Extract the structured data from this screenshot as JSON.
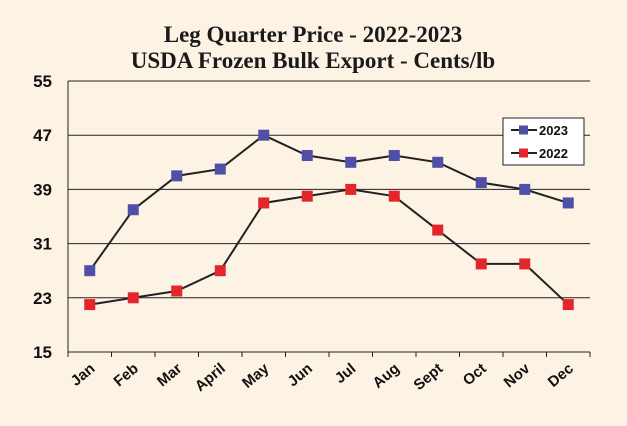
{
  "chart_data": {
    "type": "line",
    "title": "Leg Quarter Price - 2022-2023",
    "subtitle": "USDA Frozen Bulk Export - Cents/lb",
    "xlabel": "",
    "ylabel": "",
    "categories": [
      "Jan",
      "Feb",
      "Mar",
      "April",
      "May",
      "Jun",
      "Jul",
      "Aug",
      "Sept",
      "Oct",
      "Nov",
      "Dec"
    ],
    "yticks": [
      "55",
      "47",
      "39",
      "31",
      "23",
      "15"
    ],
    "ylim": [
      15,
      55
    ],
    "grid": true,
    "legend": "top-right",
    "series": [
      {
        "name": "2023",
        "color": "#4f4fa8",
        "values": [
          27,
          36,
          41,
          42,
          47,
          44,
          43,
          44,
          43,
          40,
          39,
          37
        ]
      },
      {
        "name": "2022",
        "color": "#e3262b",
        "values": [
          22,
          23,
          24,
          27,
          37,
          38,
          39,
          38,
          33,
          28,
          28,
          22
        ]
      }
    ]
  }
}
